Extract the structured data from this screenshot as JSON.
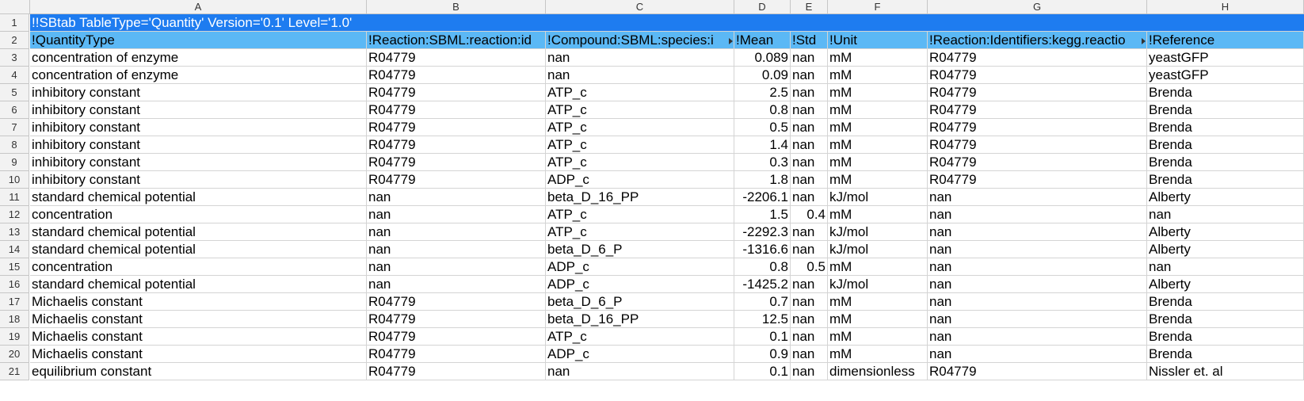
{
  "columns": [
    "A",
    "B",
    "C",
    "D",
    "E",
    "F",
    "G",
    "H"
  ],
  "title": "!!SBtab TableType='Quantity' Version='0.1' Level='1.0'",
  "headers": [
    "!QuantityType",
    "!Reaction:SBML:reaction:id",
    "!Compound:SBML:species:i",
    "!Mean",
    "!Std",
    "!Unit",
    "!Reaction:Identifiers:kegg.reactio",
    "!Reference"
  ],
  "row_numbers": [
    "1",
    "2",
    "3",
    "4",
    "5",
    "6",
    "7",
    "8",
    "9",
    "10",
    "11",
    "12",
    "13",
    "14",
    "15",
    "16",
    "17",
    "18",
    "19",
    "20",
    "21"
  ],
  "rows": [
    [
      "concentration of enzyme",
      "R04779",
      "nan",
      "0.089",
      "nan",
      "mM",
      "R04779",
      "yeastGFP"
    ],
    [
      "concentration of enzyme",
      "R04779",
      "nan",
      "0.09",
      "nan",
      "mM",
      "R04779",
      "yeastGFP"
    ],
    [
      "inhibitory constant",
      "R04779",
      "ATP_c",
      "2.5",
      "nan",
      "mM",
      "R04779",
      "Brenda"
    ],
    [
      "inhibitory constant",
      "R04779",
      "ATP_c",
      "0.8",
      "nan",
      "mM",
      "R04779",
      "Brenda"
    ],
    [
      "inhibitory constant",
      "R04779",
      "ATP_c",
      "0.5",
      "nan",
      "mM",
      "R04779",
      "Brenda"
    ],
    [
      "inhibitory constant",
      "R04779",
      "ATP_c",
      "1.4",
      "nan",
      "mM",
      "R04779",
      "Brenda"
    ],
    [
      "inhibitory constant",
      "R04779",
      "ATP_c",
      "0.3",
      "nan",
      "mM",
      "R04779",
      "Brenda"
    ],
    [
      "inhibitory constant",
      "R04779",
      "ADP_c",
      "1.8",
      "nan",
      "mM",
      "R04779",
      "Brenda"
    ],
    [
      "standard chemical potential",
      "nan",
      "beta_D_16_PP",
      "-2206.1",
      "nan",
      "kJ/mol",
      "nan",
      "Alberty"
    ],
    [
      "concentration",
      "nan",
      "ATP_c",
      "1.5",
      "0.4",
      "mM",
      "nan",
      "nan"
    ],
    [
      "standard chemical potential",
      "nan",
      "ATP_c",
      "-2292.3",
      "nan",
      "kJ/mol",
      "nan",
      "Alberty"
    ],
    [
      "standard chemical potential",
      "nan",
      "beta_D_6_P",
      "-1316.6",
      "nan",
      "kJ/mol",
      "nan",
      "Alberty"
    ],
    [
      "concentration",
      "nan",
      "ADP_c",
      "0.8",
      "0.5",
      "mM",
      "nan",
      "nan"
    ],
    [
      "standard chemical potential",
      "nan",
      "ADP_c",
      "-1425.2",
      "nan",
      "kJ/mol",
      "nan",
      "Alberty"
    ],
    [
      "Michaelis constant",
      "R04779",
      "beta_D_6_P",
      "0.7",
      "nan",
      "mM",
      "nan",
      "Brenda"
    ],
    [
      "Michaelis constant",
      "R04779",
      "beta_D_16_PP",
      "12.5",
      "nan",
      "mM",
      "nan",
      "Brenda"
    ],
    [
      "Michaelis constant",
      "R04779",
      "ATP_c",
      "0.1",
      "nan",
      "mM",
      "nan",
      "Brenda"
    ],
    [
      "Michaelis constant",
      "R04779",
      "ADP_c",
      "0.9",
      "nan",
      "mM",
      "nan",
      "Brenda"
    ],
    [
      "equilibrium constant",
      "R04779",
      "nan",
      "0.1",
      "nan",
      "dimensionless",
      "R04779",
      "Nissler et. al"
    ]
  ],
  "colors": {
    "title_row_bg": "#1e7cf0",
    "header_row_bg": "#5bb8f5",
    "gridline": "#d4d4d4",
    "chrome_bg": "#f2f2f2"
  }
}
